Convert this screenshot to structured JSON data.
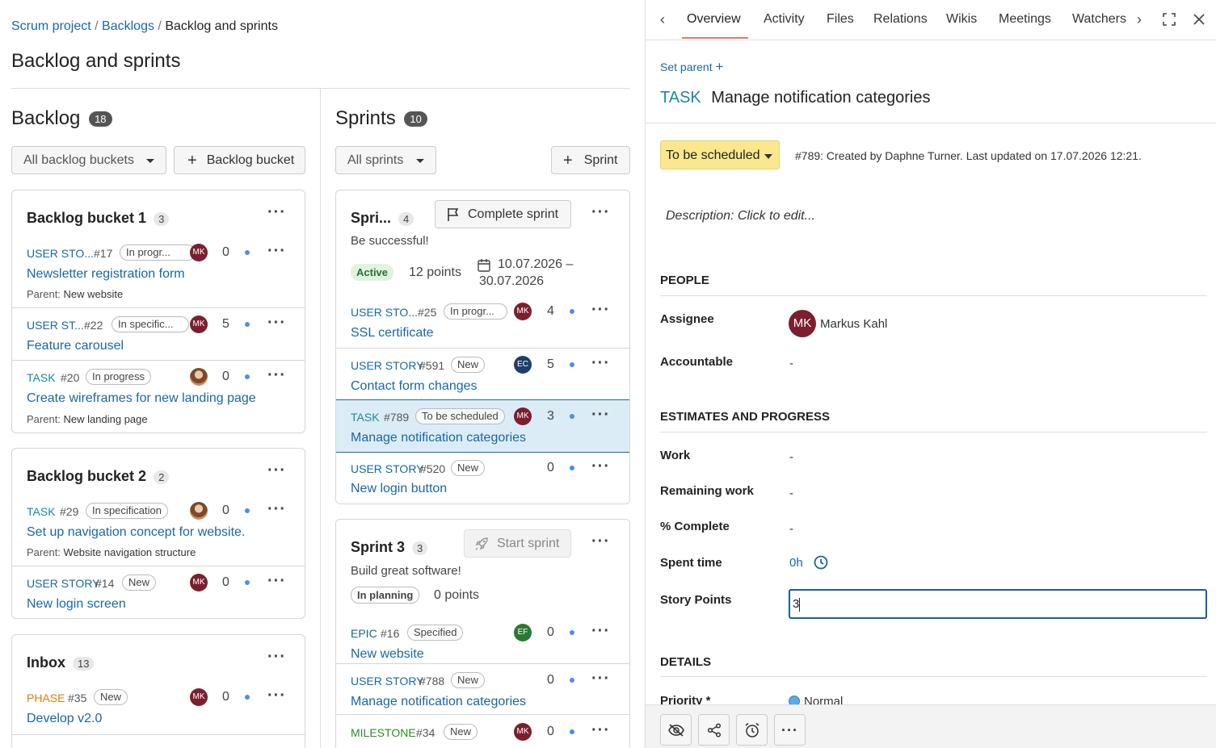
{
  "breadcrumb": {
    "item1": "Scrum project",
    "item2": "Backlogs",
    "current": "Backlog and sprints"
  },
  "page_title": "Backlog and sprints",
  "backlog": {
    "title": "Backlog",
    "count": "18",
    "filter": "All backlog buckets",
    "add_button": "Backlog bucket"
  },
  "sprints": {
    "title": "Sprints",
    "count": "10",
    "filter": "All sprints",
    "add_button": "Sprint"
  },
  "bucket1": {
    "title": "Backlog bucket 1",
    "count": "3",
    "items": [
      {
        "type": "USER STO...",
        "id": "#17",
        "status": "In progr...",
        "avatar": "MK",
        "points": "0",
        "subject": "Newsletter registration form",
        "parent_label": "Parent:",
        "parent": "New website"
      },
      {
        "type": "USER ST...",
        "id": "#22",
        "status": "In specific...",
        "avatar": "MK",
        "points": "5",
        "subject": "Feature carousel"
      },
      {
        "type": "TASK",
        "id": "#20",
        "status": "In progress",
        "points": "0",
        "subject": "Create wireframes for new landing page",
        "parent_label": "Parent:",
        "parent": "New landing page"
      }
    ]
  },
  "bucket2": {
    "title": "Backlog bucket 2",
    "count": "2",
    "items": [
      {
        "type": "TASK",
        "id": "#29",
        "status": "In specification",
        "points": "0",
        "subject": "Set up navigation concept for website.",
        "parent_label": "Parent:",
        "parent": "Website navigation structure"
      },
      {
        "type": "USER STORY",
        "id": "#14",
        "status": "New",
        "avatar": "MK",
        "points": "0",
        "subject": "New login screen"
      }
    ]
  },
  "inbox": {
    "title": "Inbox",
    "count": "13",
    "items": [
      {
        "type": "PHASE",
        "id": "#35",
        "status": "New",
        "avatar": "MK",
        "points": "0",
        "subject": "Develop v2.0"
      }
    ]
  },
  "sprint_active": {
    "title": "Spri...",
    "count": "4",
    "complete_button": "Complete sprint",
    "goal": "Be successful!",
    "state": "Active",
    "points": "12 points",
    "dates": "10.07.2026 –",
    "dates2": "30.07.2026",
    "items": [
      {
        "type": "USER STO...",
        "id": "#25",
        "status": "In progr...",
        "avatar": "MK",
        "points": "4",
        "subject": "SSL certificate"
      },
      {
        "type": "USER STORY",
        "id": "#591",
        "status": "New",
        "avatar": "EC",
        "points": "5",
        "subject": "Contact form changes"
      },
      {
        "type": "TASK",
        "id": "#789",
        "status": "To be scheduled",
        "avatar": "MK",
        "points": "3",
        "subject": "Manage notification categories"
      },
      {
        "type": "USER STORY",
        "id": "#520",
        "status": "New",
        "points": "0",
        "subject": "New login button"
      }
    ]
  },
  "sprint3": {
    "title": "Sprint 3",
    "count": "3",
    "start_button": "Start sprint",
    "goal": "Build great software!",
    "state": "In planning",
    "points": "0 points",
    "items": [
      {
        "type": "EPIC",
        "id": "#16",
        "status": "Specified",
        "avatar": "EF",
        "points": "0",
        "subject": "New website"
      },
      {
        "type": "USER STORY",
        "id": "#788",
        "status": "New",
        "points": "0",
        "subject": "Manage notification categories"
      },
      {
        "type": "MILESTONE",
        "id": "#34",
        "status": "New",
        "avatar": "MK",
        "points": "0"
      }
    ]
  },
  "detail": {
    "tabs": [
      "Overview",
      "Activity",
      "Files",
      "Relations",
      "Wikis",
      "Meetings",
      "Watchers"
    ],
    "set_parent": "Set parent",
    "type": "TASK",
    "subject": "Manage notification categories",
    "status": "To be scheduled",
    "meta": "#789: Created by Daphne Turner. Last updated on 17.07.2026 12:21.",
    "description": "Description: Click to edit...",
    "people": "PEOPLE",
    "assignee_label": "Assignee",
    "assignee_avatar": "MK",
    "assignee": "Markus Kahl",
    "accountable_label": "Accountable",
    "accountable": "-",
    "estimates": "ESTIMATES AND PROGRESS",
    "work_label": "Work",
    "work": "-",
    "remaining_label": "Remaining work",
    "remaining": "-",
    "complete_label": "% Complete",
    "complete": "-",
    "spent_label": "Spent time",
    "spent": "0h",
    "story_label": "Story Points",
    "story_points": "3",
    "details": "DETAILS",
    "priority_label": "Priority *",
    "priority": "Normal"
  },
  "colors": {
    "user_story": "#1a67a3",
    "task": "#1a8a9c",
    "epic": "#1a6a7a",
    "phase": "#e07b12",
    "milestone": "#2e8b22",
    "link": "#1a67a3",
    "selected_row": "#dcecf6",
    "status_yellow": "#fbe88e"
  }
}
